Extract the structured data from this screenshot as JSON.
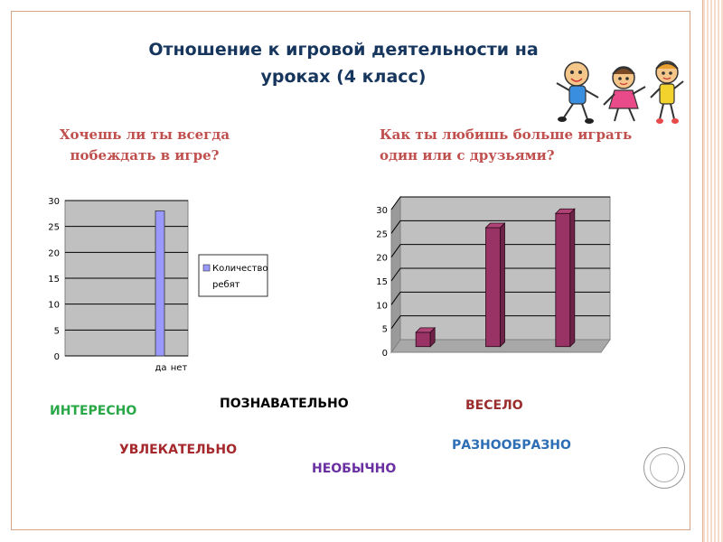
{
  "slide": {
    "title_line1": "Отношение к игровой деятельности на",
    "title_line2": "уроках (4 класс)",
    "question1_line1": "Хочешь ли ты всегда",
    "question1_line2": "побеждать в игре?",
    "question2_line1": "Как ты любишь больше играть",
    "question2_line2": "один или с друзьями?"
  },
  "words": {
    "interesno": "ИНТЕРЕСНО",
    "poznavatelno": "ПОЗНАВАТЕЛЬНО",
    "veselo": "ВЕСЕЛО",
    "uvlekatelno": "УВЛЕКАТЕЛЬНО",
    "raznoobrazno": "РАЗНООБРАЗНО",
    "neobychno": "НЕОБЫЧНО"
  },
  "colors": {
    "chart1_bar": "#9999ff",
    "chart2_bar": "#993366",
    "plot_bg": "#c0c0c0",
    "title": "#17365d",
    "question": "#c0504d"
  },
  "chart_data": [
    {
      "type": "bar",
      "categories": [
        "да",
        "нет"
      ],
      "series": [
        {
          "name": "Количество ребят",
          "values": [
            28,
            0
          ]
        }
      ],
      "ylim": [
        0,
        30
      ],
      "yticks": [
        0,
        5,
        10,
        15,
        20,
        25,
        30
      ],
      "grid": true,
      "legend": "right",
      "legend_lines": [
        "Количество",
        "ребят"
      ]
    },
    {
      "type": "bar",
      "categories": [
        "",
        "",
        ""
      ],
      "series": [
        {
          "name": "",
          "values": [
            3,
            25,
            28
          ]
        }
      ],
      "ylim": [
        0,
        30
      ],
      "yticks": [
        0,
        5,
        10,
        15,
        20,
        25,
        30
      ],
      "grid": true,
      "style": "3d"
    }
  ]
}
